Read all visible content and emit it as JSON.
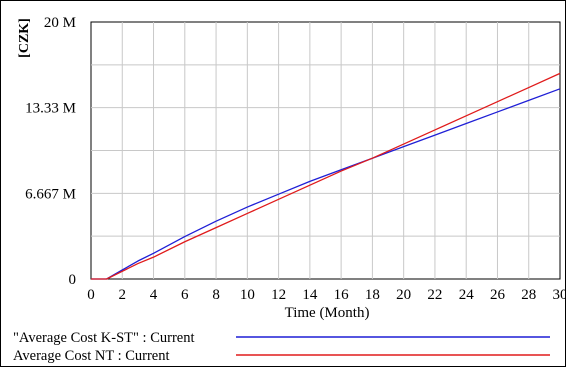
{
  "chart_data": {
    "type": "line",
    "unit_label": "[CZK]",
    "xlabel": "Time (Month)",
    "ylabel": "",
    "xlim": [
      0,
      30
    ],
    "ylim": [
      0,
      20000000
    ],
    "x_ticks": [
      "0",
      "2",
      "4",
      "6",
      "8",
      "10",
      "12",
      "14",
      "16",
      "18",
      "20",
      "22",
      "24",
      "26",
      "28",
      "30"
    ],
    "y_ticks": [
      {
        "value": 0,
        "label": "0"
      },
      {
        "value": 6667000,
        "label": "6.667 M"
      },
      {
        "value": 13330000,
        "label": "13.33 M"
      },
      {
        "value": 20000000,
        "label": "20 M"
      }
    ],
    "grid": true,
    "legend_placement": "bottom",
    "series": [
      {
        "name": "\"Average Cost K-ST\" : Current",
        "color": "#1f1fd6",
        "x": [
          0,
          1,
          2,
          3,
          4,
          6,
          8,
          10,
          12,
          14,
          16,
          18,
          20,
          22,
          24,
          26,
          28,
          30
        ],
        "y": [
          0,
          0,
          700000,
          1400000,
          2000000,
          3300000,
          4500000,
          5600000,
          6600000,
          7600000,
          8500000,
          9400000,
          10300000,
          11200000,
          12100000,
          13000000,
          13900000,
          14800000
        ]
      },
      {
        "name": "Average Cost NT : Current",
        "color": "#e01b1b",
        "x": [
          0,
          1,
          2,
          3,
          4,
          6,
          8,
          10,
          12,
          14,
          16,
          18,
          20,
          22,
          24,
          26,
          28,
          30
        ],
        "y": [
          0,
          0,
          600000,
          1200000,
          1700000,
          2900000,
          4000000,
          5100000,
          6200000,
          7300000,
          8400000,
          9400000,
          10500000,
          11600000,
          12700000,
          13800000,
          14900000,
          16000000
        ]
      }
    ]
  }
}
